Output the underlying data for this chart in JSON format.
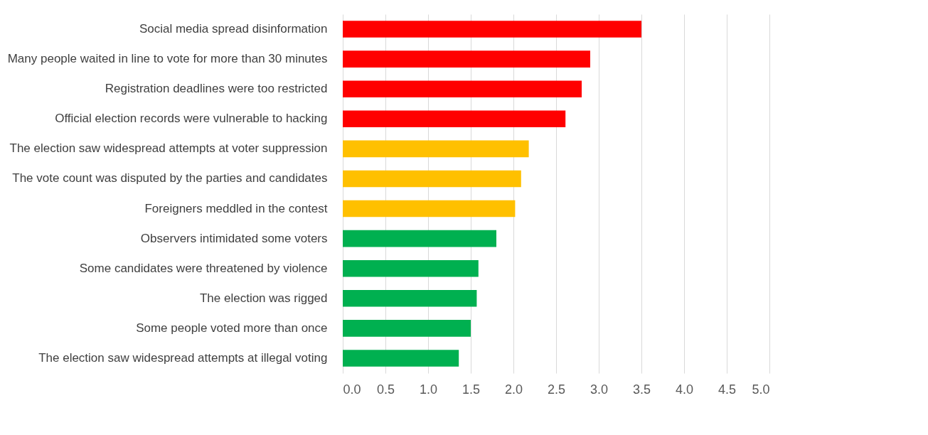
{
  "chart_data": {
    "type": "bar",
    "orientation": "horizontal",
    "categories": [
      "Social media spread disinformation",
      "Many people waited in line to vote for more than 30 minutes",
      "Registration deadlines were too restricted",
      "Official election records were vulnerable to hacking",
      "The election saw widespread attempts at voter suppression",
      "The vote count was disputed by the parties and candidates",
      "Foreigners meddled in the contest",
      "Observers intimidated some voters",
      "Some candidates were threatened by violence",
      "The election was rigged",
      "Some people voted more than once",
      "The election saw widespread attempts at illegal voting"
    ],
    "values": [
      3.5,
      2.9,
      2.8,
      2.61,
      2.18,
      2.09,
      2.02,
      1.8,
      1.59,
      1.57,
      1.5,
      1.36
    ],
    "colors": [
      "#ff0000",
      "#ff0000",
      "#ff0000",
      "#ff0000",
      "#ffc000",
      "#ffc000",
      "#ffc000",
      "#00b050",
      "#00b050",
      "#00b050",
      "#00b050",
      "#00b050"
    ],
    "xlim": [
      0,
      5
    ],
    "xticks": [
      {
        "value": 0,
        "label": "0.0"
      },
      {
        "value": 0.5,
        "label": "0.5"
      },
      {
        "value": 1,
        "label": "1.0"
      },
      {
        "value": 1.5,
        "label": "1.5"
      },
      {
        "value": 2,
        "label": "2.0"
      },
      {
        "value": 2.5,
        "label": "2.5"
      },
      {
        "value": 3,
        "label": "3.0"
      },
      {
        "value": 3.5,
        "label": "3.5"
      },
      {
        "value": 4,
        "label": "4.0"
      },
      {
        "value": 4.5,
        "label": "4.5"
      },
      {
        "value": 5,
        "label": "5.0"
      }
    ],
    "grid": "x"
  }
}
